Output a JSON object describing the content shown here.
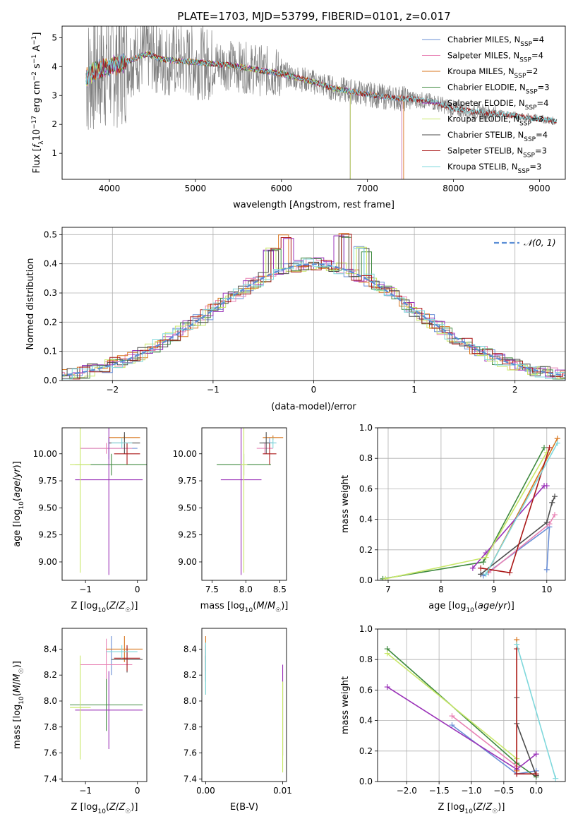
{
  "page_title": "PLATE=1703, MJD=53799, FIBERID=0101, z=0.017",
  "colors": {
    "Chabrier MILES": "#6a8fd6",
    "Salpeter MILES": "#e882b4",
    "Kroupa MILES": "#d9761e",
    "Chabrier ELODIE": "#3f8a3f",
    "Salpeter ELODIE": "#9a32b8",
    "Kroupa ELODIE": "#c9e86a",
    "Chabrier STELIB": "#4d4d4d",
    "Salpeter STELIB": "#aa1818",
    "Kroupa STELIB": "#7fd8dc",
    "data": "#808080",
    "gaussian": "#5b8ed6"
  },
  "chart_data": [
    {
      "id": "spectrum",
      "type": "line",
      "title": "PLATE=1703, MJD=53799, FIBERID=0101, z=0.017",
      "xlabel": "wavelength [Angstrom, rest frame]",
      "ylabel": "Flux [f_λ 10^-17 erg cm^-2 s^-1 A^-1]",
      "xlim": [
        3450,
        9300
      ],
      "ylim": [
        0.1,
        5.4
      ],
      "xticks": [
        "4000",
        "5000",
        "6000",
        "7000",
        "8000",
        "9000"
      ],
      "yticks": [
        "1",
        "2",
        "3",
        "4",
        "5"
      ],
      "legend": [
        {
          "name": "Chabrier MILES",
          "nssp": "4"
        },
        {
          "name": "Salpeter MILES",
          "nssp": "4"
        },
        {
          "name": "Kroupa MILES",
          "nssp": "2"
        },
        {
          "name": "Chabrier ELODIE",
          "nssp": "3"
        },
        {
          "name": "Salpeter ELODIE",
          "nssp": "4"
        },
        {
          "name": "Kroupa ELODIE",
          "nssp": "3"
        },
        {
          "name": "Chabrier STELIB",
          "nssp": "4"
        },
        {
          "name": "Salpeter STELIB",
          "nssp": "3"
        },
        {
          "name": "Kroupa STELIB",
          "nssp": "3"
        }
      ],
      "legend_placement": "upper right",
      "continuum": [
        [
          3730,
          3.6
        ],
        [
          3800,
          3.8
        ],
        [
          3900,
          3.9
        ],
        [
          4000,
          4.0
        ],
        [
          4150,
          4.1
        ],
        [
          4300,
          4.3
        ],
        [
          4450,
          4.45
        ],
        [
          4600,
          4.25
        ],
        [
          4800,
          4.2
        ],
        [
          5000,
          4.15
        ],
        [
          5200,
          4.1
        ],
        [
          5400,
          4.05
        ],
        [
          5600,
          3.95
        ],
        [
          5800,
          3.85
        ],
        [
          6000,
          3.75
        ],
        [
          6200,
          3.6
        ],
        [
          6400,
          3.45
        ],
        [
          6600,
          3.25
        ],
        [
          6800,
          3.15
        ],
        [
          7000,
          3.05
        ],
        [
          7200,
          2.95
        ],
        [
          7400,
          2.9
        ],
        [
          7600,
          2.85
        ],
        [
          7800,
          2.75
        ],
        [
          8000,
          2.55
        ],
        [
          8200,
          2.45
        ],
        [
          8400,
          2.4
        ],
        [
          8600,
          2.35
        ],
        [
          8800,
          2.25
        ],
        [
          9000,
          2.2
        ],
        [
          9200,
          2.1
        ]
      ]
    },
    {
      "id": "residuals",
      "type": "line",
      "xlabel": "(data-model)/error",
      "ylabel": "Normed distribution",
      "xlim": [
        -2.5,
        2.5
      ],
      "ylim": [
        0,
        0.525
      ],
      "xticks": [
        "−2",
        "−1",
        "0",
        "1",
        "2"
      ],
      "yticks": [
        "0.0",
        "0.1",
        "0.2",
        "0.3",
        "0.4",
        "0.5"
      ],
      "legend": "𝒩(0, 1)",
      "legend_placement": "upper right",
      "grid": true,
      "gaussian": {
        "mean": 0,
        "sigma": 1
      },
      "peak_bins": [
        [
          -0.3,
          0.5
        ],
        [
          0.25,
          0.505
        ],
        [
          0.45,
          0.46
        ],
        [
          -0.45,
          0.46
        ]
      ]
    },
    {
      "id": "age_vs_Z",
      "type": "scatter",
      "xlabel": "Z [log10(Z/Z☉)]",
      "ylabel": "age  [log10(age/yr)]",
      "xlim": [
        -1.45,
        0.18
      ],
      "ylim": [
        8.83,
        10.24
      ],
      "xticks": [
        "−1",
        "0"
      ],
      "yticks": [
        "9.00",
        "9.25",
        "9.50",
        "9.75",
        "10.00"
      ],
      "points": [
        {
          "series": "Chabrier MILES",
          "x": -0.55,
          "y": 10.05,
          "xerr": 0.55,
          "yerr": 0.1
        },
        {
          "series": "Salpeter MILES",
          "x": -0.6,
          "y": 10.05,
          "xerr": 0.5,
          "yerr": 0.05
        },
        {
          "series": "Kroupa MILES",
          "x": -0.25,
          "y": 10.15,
          "xerr": 0.3,
          "yerr": 0.02
        },
        {
          "series": "Chabrier ELODIE",
          "x": -0.5,
          "y": 9.9,
          "xerr": 0.7,
          "yerr": 0.1
        },
        {
          "series": "Salpeter ELODIE",
          "x": -0.55,
          "y": 9.76,
          "xerr": 0.65,
          "yerr": 0.88
        },
        {
          "series": "Kroupa ELODIE",
          "x": -1.1,
          "y": 9.9,
          "xerr": 0.2,
          "yerr": 1.0
        },
        {
          "series": "Chabrier STELIB",
          "x": -0.25,
          "y": 10.1,
          "xerr": 0.3,
          "yerr": 0.1
        },
        {
          "series": "Salpeter STELIB",
          "x": -0.2,
          "y": 10.0,
          "xerr": 0.25,
          "yerr": 0.1
        },
        {
          "series": "Kroupa STELIB",
          "x": -0.3,
          "y": 10.1,
          "xerr": 0.2,
          "yerr": 0.05
        }
      ]
    },
    {
      "id": "age_vs_mass",
      "type": "scatter",
      "xlabel": "mass [log10(M/M☉)]",
      "ylabel": "",
      "xlim": [
        7.35,
        8.6
      ],
      "ylim": [
        8.83,
        10.24
      ],
      "xticks": [
        "7.5",
        "8.0",
        "8.5"
      ],
      "yticks": [
        "9.00",
        "9.25",
        "9.50",
        "9.75",
        "10.00"
      ],
      "points": [
        {
          "series": "Chabrier MILES",
          "x": 8.35,
          "y": 10.1,
          "xerr": 0.1,
          "yerr": 0.05
        },
        {
          "series": "Salpeter MILES",
          "x": 8.28,
          "y": 10.05,
          "xerr": 0.12,
          "yerr": 0.05
        },
        {
          "series": "Kroupa MILES",
          "x": 8.4,
          "y": 10.15,
          "xerr": 0.15,
          "yerr": 0.02
        },
        {
          "series": "Chabrier ELODIE",
          "x": 7.97,
          "y": 9.9,
          "xerr": 0.4,
          "yerr": 0.1
        },
        {
          "series": "Salpeter ELODIE",
          "x": 7.93,
          "y": 9.76,
          "xerr": 0.3,
          "yerr": 0.88
        },
        {
          "series": "Kroupa ELODIE",
          "x": 7.97,
          "y": 9.9,
          "xerr": 0.05,
          "yerr": 1.0
        },
        {
          "series": "Chabrier STELIB",
          "x": 8.3,
          "y": 10.1,
          "xerr": 0.1,
          "yerr": 0.1
        },
        {
          "series": "Salpeter STELIB",
          "x": 8.35,
          "y": 10.0,
          "xerr": 0.1,
          "yerr": 0.1
        },
        {
          "series": "Kroupa STELIB",
          "x": 8.4,
          "y": 10.1,
          "xerr": 0.05,
          "yerr": 0.05
        }
      ]
    },
    {
      "id": "weight_vs_age",
      "type": "line",
      "xlabel": "age  [log10(age/yr)]",
      "ylabel": "mass weight",
      "xlim": [
        6.8,
        10.35
      ],
      "ylim": [
        0,
        1.0
      ],
      "xticks": [
        "7",
        "8",
        "9",
        "10"
      ],
      "yticks": [
        "0.0",
        "0.2",
        "0.4",
        "0.6",
        "0.8",
        "1.0"
      ],
      "grid": true,
      "series": [
        {
          "name": "Chabrier MILES",
          "x": [
            8.8,
            10.05,
            10.0
          ],
          "y": [
            0.03,
            0.35,
            0.07
          ]
        },
        {
          "name": "Salpeter MILES",
          "x": [
            8.9,
            10.05,
            10.15
          ],
          "y": [
            0.05,
            0.37,
            0.43
          ]
        },
        {
          "name": "Kroupa MILES",
          "x": [
            8.9,
            10.2
          ],
          "y": [
            0.07,
            0.93
          ]
        },
        {
          "name": "Chabrier ELODIE",
          "x": [
            6.9,
            8.8,
            9.95
          ],
          "y": [
            0.01,
            0.12,
            0.87
          ]
        },
        {
          "name": "Salpeter ELODIE",
          "x": [
            8.6,
            8.85,
            9.95,
            10.0
          ],
          "y": [
            0.08,
            0.18,
            0.62,
            0.62
          ]
        },
        {
          "name": "Kroupa ELODIE",
          "x": [
            6.95,
            8.85,
            10.0
          ],
          "y": [
            0.01,
            0.15,
            0.84
          ]
        },
        {
          "name": "Chabrier STELIB",
          "x": [
            8.75,
            10.0,
            10.1,
            10.15
          ],
          "y": [
            0.04,
            0.38,
            0.51,
            0.55
          ]
        },
        {
          "name": "Salpeter STELIB",
          "x": [
            8.75,
            9.3,
            10.05
          ],
          "y": [
            0.08,
            0.05,
            0.87
          ]
        },
        {
          "name": "Kroupa STELIB",
          "x": [
            8.85,
            10.2
          ],
          "y": [
            0.04,
            0.9
          ]
        }
      ]
    },
    {
      "id": "mass_vs_Z",
      "type": "scatter",
      "xlabel": "Z [log10(Z/Z☉)]",
      "ylabel": "mass [log10(M/M☉)]",
      "xlim": [
        -1.45,
        0.18
      ],
      "ylim": [
        7.38,
        8.56
      ],
      "xticks": [
        "−1",
        "0"
      ],
      "yticks": [
        "7.4",
        "7.6",
        "7.8",
        "8.0",
        "8.2",
        "8.4"
      ],
      "points": [
        {
          "series": "Chabrier MILES",
          "x": -0.5,
          "y": 8.35,
          "xerr": 0.0,
          "yerr": 0.15
        },
        {
          "series": "Salpeter MILES",
          "x": -0.6,
          "y": 8.28,
          "xerr": 0.5,
          "yerr": 0.2
        },
        {
          "series": "Kroupa MILES",
          "x": -0.25,
          "y": 8.4,
          "xerr": 0.35,
          "yerr": 0.1
        },
        {
          "series": "Chabrier ELODIE",
          "x": -0.6,
          "y": 7.97,
          "xerr": 0.7,
          "yerr": 0.2
        },
        {
          "series": "Salpeter ELODIE",
          "x": -0.55,
          "y": 7.93,
          "xerr": 0.65,
          "yerr": 0.3
        },
        {
          "series": "Kroupa ELODIE",
          "x": -1.1,
          "y": 7.95,
          "xerr": 0.2,
          "yerr": 0.4
        },
        {
          "series": "Chabrier STELIB",
          "x": -0.2,
          "y": 8.32,
          "xerr": 0.3,
          "yerr": 0.1
        },
        {
          "series": "Salpeter STELIB",
          "x": -0.2,
          "y": 8.33,
          "xerr": 0.25,
          "yerr": 0.1
        },
        {
          "series": "Kroupa STELIB",
          "x": -0.3,
          "y": 8.38,
          "xerr": 0.3,
          "yerr": 0.05
        }
      ]
    },
    {
      "id": "mass_vs_ebv",
      "type": "scatter",
      "xlabel": "E(B-V)",
      "ylabel": "",
      "xlim": [
        -0.0005,
        0.0105
      ],
      "ylim": [
        7.38,
        8.56
      ],
      "xticks": [
        "0.00",
        "0.01"
      ],
      "yticks": [
        "7.4",
        "7.6",
        "7.8",
        "8.0",
        "8.2",
        "8.4"
      ],
      "points": [
        {
          "series": "Chabrier MILES",
          "x": 0.0,
          "y": 8.3,
          "xerr": 0,
          "yerr": 0.15
        },
        {
          "series": "Salpeter MILES",
          "x": 0.0,
          "y": 8.3,
          "xerr": 0,
          "yerr": 0.1
        },
        {
          "series": "Kroupa MILES",
          "x": 0.0,
          "y": 8.4,
          "xerr": 0,
          "yerr": 0.1
        },
        {
          "series": "Chabrier ELODIE",
          "x": 0.0,
          "y": 8.2,
          "xerr": 0,
          "yerr": 0.15
        },
        {
          "series": "Salpeter ELODIE",
          "x": 0.01,
          "y": 7.93,
          "xerr": 0,
          "yerr": 0.35
        },
        {
          "series": "Kroupa ELODIE",
          "x": 0.01,
          "y": 7.8,
          "xerr": 0,
          "yerr": 0.35
        },
        {
          "series": "Chabrier STELIB",
          "x": 0.0,
          "y": 8.25,
          "xerr": 0,
          "yerr": 0.1
        },
        {
          "series": "Salpeter STELIB",
          "x": 0.0,
          "y": 8.33,
          "xerr": 0,
          "yerr": 0.1
        },
        {
          "series": "Kroupa STELIB",
          "x": 0.0,
          "y": 8.25,
          "xerr": 0,
          "yerr": 0.2
        }
      ]
    },
    {
      "id": "weight_vs_Z",
      "type": "line",
      "xlabel": "Z [log10(Z/Z☉)]",
      "ylabel": "mass weight",
      "xlim": [
        -2.45,
        0.45
      ],
      "ylim": [
        0,
        1.0
      ],
      "xticks": [
        "−2.0",
        "−1.5",
        "−1.0",
        "−0.5",
        "0.0"
      ],
      "yticks": [
        "0.0",
        "0.2",
        "0.4",
        "0.6",
        "0.8",
        "1.0"
      ],
      "grid": true,
      "series": [
        {
          "name": "Chabrier MILES",
          "x": [
            -1.3,
            -0.3,
            0.0,
            -0.3
          ],
          "y": [
            0.37,
            0.05,
            0.07,
            0.05
          ]
        },
        {
          "name": "Salpeter MILES",
          "x": [
            -1.3,
            -0.3,
            -0.3
          ],
          "y": [
            0.43,
            0.1,
            0.05
          ]
        },
        {
          "name": "Kroupa MILES",
          "x": [
            -0.3,
            -0.3
          ],
          "y": [
            0.93,
            0.07
          ]
        },
        {
          "name": "Chabrier ELODIE",
          "x": [
            -2.3,
            -0.3,
            0.0
          ],
          "y": [
            0.87,
            0.12,
            0.03
          ]
        },
        {
          "name": "Salpeter ELODIE",
          "x": [
            -2.3,
            -0.3,
            0.0
          ],
          "y": [
            0.62,
            0.08,
            0.18
          ]
        },
        {
          "name": "Kroupa ELODIE",
          "x": [
            -2.3,
            -0.3
          ],
          "y": [
            0.84,
            0.15
          ]
        },
        {
          "name": "Chabrier STELIB",
          "x": [
            -0.3,
            -0.3,
            0.0
          ],
          "y": [
            0.55,
            0.38,
            0.04
          ]
        },
        {
          "name": "Salpeter STELIB",
          "x": [
            -0.3,
            -0.3,
            0.0
          ],
          "y": [
            0.87,
            0.05,
            0.05
          ]
        },
        {
          "name": "Kroupa STELIB",
          "x": [
            -0.3,
            0.3
          ],
          "y": [
            0.9,
            0.02
          ]
        }
      ]
    }
  ]
}
